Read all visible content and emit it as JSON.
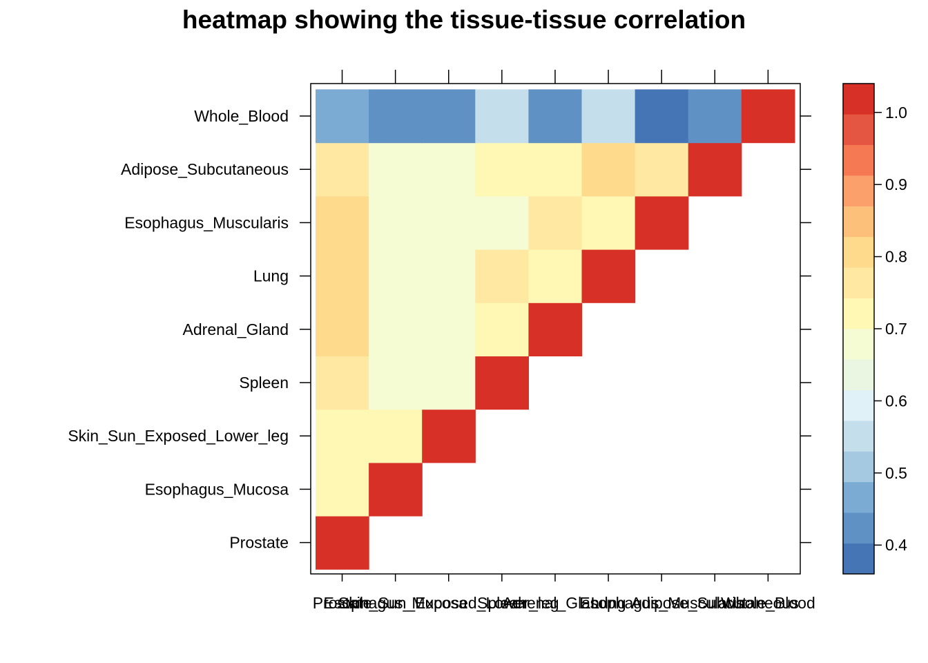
{
  "chart_data": {
    "type": "heatmap",
    "title": "heatmap showing the tissue-tissue correlation",
    "xlabel": "",
    "ylabel": "",
    "tissues": [
      "Prostate",
      "Esophagus_Mucosa",
      "Skin_Sun_Exposed_Lower_leg",
      "Spleen",
      "Adrenal_Gland",
      "Lung",
      "Esophagus_Muscularis",
      "Adipose_Subcutaneous",
      "Whole_Blood"
    ],
    "layout": "lower-triangle; x columns left-to-right and y rows bottom-to-top in tissue order; cells above the diagonal are empty",
    "values": [
      [
        1.0
      ],
      [
        0.73,
        1.0
      ],
      [
        0.73,
        0.73,
        1.0
      ],
      [
        0.76,
        0.66,
        0.66,
        1.0
      ],
      [
        0.79,
        0.69,
        0.66,
        0.73,
        1.0
      ],
      [
        0.79,
        0.69,
        0.69,
        0.76,
        0.73,
        1.0
      ],
      [
        0.79,
        0.66,
        0.66,
        0.69,
        0.76,
        0.73,
        1.0
      ],
      [
        0.76,
        0.66,
        0.69,
        0.73,
        0.73,
        0.79,
        0.76,
        1.0
      ],
      [
        0.48,
        0.44,
        0.44,
        0.56,
        0.44,
        0.56,
        0.39,
        0.44,
        1.0
      ]
    ],
    "colorbar": {
      "range": [
        0.36,
        1.04
      ],
      "ticks": [
        0.4,
        0.5,
        0.6,
        0.7,
        0.8,
        0.9,
        1.0
      ],
      "tick_labels": [
        "0.4",
        "0.5",
        "0.6",
        "0.7",
        "0.8",
        "0.9",
        "1.0"
      ],
      "colors": [
        "#4575B4",
        "#5F91C4",
        "#7BAAD2",
        "#A6C9E2",
        "#C4DEEC",
        "#E0F1F8",
        "#EAF5E2",
        "#F5FBD2",
        "#FFF7B4",
        "#FEE8A2",
        "#FEDB8C",
        "#FDC07B",
        "#FB9F6B",
        "#F57A54",
        "#E55642",
        "#D73027"
      ]
    },
    "grid": false,
    "legend": "colorbar right"
  }
}
